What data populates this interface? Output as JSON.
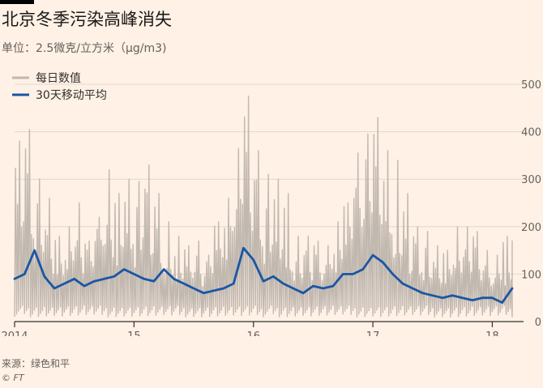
{
  "title": "北京冬季污染高峰消失",
  "subtitle": "单位：2.5微克/立方米（μg/m3)",
  "source": "来源：绿色和平",
  "credit": "© FT",
  "chart_data": {
    "type": "line",
    "ylim": [
      0,
      500
    ],
    "yticks": [
      0,
      100,
      200,
      300,
      400,
      500
    ],
    "x_start": "2014-01",
    "x_end": "2018-03",
    "xticks": [
      {
        "date": "2014-01",
        "label": "2014"
      },
      {
        "date": "2015-01",
        "label": "15"
      },
      {
        "date": "2016-01",
        "label": "16"
      },
      {
        "date": "2017-01",
        "label": "17"
      },
      {
        "date": "2018-01",
        "label": "18"
      }
    ],
    "legend_position": "top-left",
    "grid": true,
    "series": [
      {
        "name": "每日数值",
        "color": "#c1b8b0",
        "kind": "daily",
        "x": [
          "2014-01",
          "2014-02",
          "2014-03",
          "2014-04",
          "2014-05",
          "2014-06",
          "2014-07",
          "2014-08",
          "2014-09",
          "2014-10",
          "2014-11",
          "2014-12",
          "2015-01",
          "2015-02",
          "2015-03",
          "2015-04",
          "2015-05",
          "2015-06",
          "2015-07",
          "2015-08",
          "2015-09",
          "2015-10",
          "2015-11",
          "2015-12",
          "2016-01",
          "2016-02",
          "2016-03",
          "2016-04",
          "2016-05",
          "2016-06",
          "2016-07",
          "2016-08",
          "2016-09",
          "2016-10",
          "2016-11",
          "2016-12",
          "2017-01",
          "2017-02",
          "2017-03",
          "2017-04",
          "2017-05",
          "2017-06",
          "2017-07",
          "2017-08",
          "2017-09",
          "2017-10",
          "2017-11",
          "2017-12",
          "2018-01",
          "2018-02",
          "2018-03"
        ],
        "values": [
          380,
          405,
          300,
          260,
          180,
          200,
          250,
          170,
          220,
          320,
          270,
          300,
          295,
          330,
          270,
          210,
          180,
          160,
          170,
          140,
          210,
          260,
          365,
          475,
          360,
          310,
          300,
          270,
          180,
          180,
          170,
          160,
          210,
          250,
          355,
          395,
          430,
          360,
          340,
          270,
          200,
          190,
          160,
          150,
          200,
          200,
          190,
          150,
          140,
          180,
          170
        ]
      },
      {
        "name": "30天移动平均",
        "color": "#1a56a3",
        "kind": "moving_average",
        "x": [
          "2014-01",
          "2014-02",
          "2014-03",
          "2014-04",
          "2014-05",
          "2014-06",
          "2014-07",
          "2014-08",
          "2014-09",
          "2014-10",
          "2014-11",
          "2014-12",
          "2015-01",
          "2015-02",
          "2015-03",
          "2015-04",
          "2015-05",
          "2015-06",
          "2015-07",
          "2015-08",
          "2015-09",
          "2015-10",
          "2015-11",
          "2015-12",
          "2016-01",
          "2016-02",
          "2016-03",
          "2016-04",
          "2016-05",
          "2016-06",
          "2016-07",
          "2016-08",
          "2016-09",
          "2016-10",
          "2016-11",
          "2016-12",
          "2017-01",
          "2017-02",
          "2017-03",
          "2017-04",
          "2017-05",
          "2017-06",
          "2017-07",
          "2017-08",
          "2017-09",
          "2017-10",
          "2017-11",
          "2017-12",
          "2018-01",
          "2018-02",
          "2018-03"
        ],
        "values": [
          90,
          100,
          150,
          95,
          70,
          80,
          90,
          75,
          85,
          90,
          95,
          110,
          100,
          90,
          85,
          110,
          90,
          80,
          70,
          60,
          65,
          70,
          80,
          155,
          130,
          85,
          95,
          80,
          70,
          60,
          75,
          70,
          75,
          100,
          100,
          110,
          140,
          125,
          100,
          80,
          70,
          60,
          55,
          50,
          55,
          50,
          45,
          50,
          50,
          40,
          70
        ]
      }
    ]
  }
}
